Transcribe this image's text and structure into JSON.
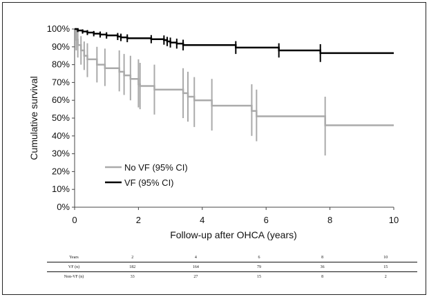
{
  "chart_data": {
    "type": "line",
    "xlabel": "Follow-up after OHCA (years)",
    "ylabel": "Cumulative survival",
    "xlim": [
      0,
      10
    ],
    "ylim": [
      0,
      100
    ],
    "x_ticks": [
      0,
      2,
      4,
      6,
      8,
      10
    ],
    "y_ticks": [
      0,
      10,
      20,
      30,
      40,
      50,
      60,
      70,
      80,
      90,
      100
    ],
    "y_tick_suffix": "%",
    "legend_position": "lower-left",
    "series": [
      {
        "name": "No VF (95% CI)",
        "color": "#aaaaaa",
        "steps": [
          {
            "x": 0,
            "y": 100
          },
          {
            "x": 0.05,
            "y": 94,
            "lo": 88,
            "hi": 100
          },
          {
            "x": 0.1,
            "y": 91,
            "lo": 84,
            "hi": 98
          },
          {
            "x": 0.2,
            "y": 88,
            "lo": 80,
            "hi": 96
          },
          {
            "x": 0.3,
            "y": 85,
            "lo": 77,
            "hi": 93
          },
          {
            "x": 0.4,
            "y": 83,
            "lo": 73,
            "hi": 92
          },
          {
            "x": 0.7,
            "y": 80,
            "lo": 70,
            "hi": 90
          },
          {
            "x": 0.95,
            "y": 78,
            "lo": 68,
            "hi": 89
          },
          {
            "x": 1.4,
            "y": 76,
            "lo": 65,
            "hi": 88
          },
          {
            "x": 1.55,
            "y": 74,
            "lo": 63,
            "hi": 86
          },
          {
            "x": 1.75,
            "y": 72,
            "lo": 60,
            "hi": 85
          },
          {
            "x": 2.0,
            "y": 69,
            "lo": 56,
            "hi": 83
          },
          {
            "x": 2.05,
            "y": 68,
            "lo": 55,
            "hi": 81
          },
          {
            "x": 2.5,
            "y": 66,
            "lo": 52,
            "hi": 80
          },
          {
            "x": 3.4,
            "y": 64,
            "lo": 50,
            "hi": 78
          },
          {
            "x": 3.55,
            "y": 62,
            "lo": 48,
            "hi": 76
          },
          {
            "x": 3.75,
            "y": 60,
            "lo": 45,
            "hi": 73
          },
          {
            "x": 4.3,
            "y": 57,
            "lo": 43,
            "hi": 72
          },
          {
            "x": 5.55,
            "y": 54,
            "lo": 40,
            "hi": 69
          },
          {
            "x": 5.7,
            "y": 51,
            "lo": 37,
            "hi": 66
          },
          {
            "x": 7.85,
            "y": 46,
            "lo": 29,
            "hi": 62
          },
          {
            "x": 10,
            "y": 46
          }
        ]
      },
      {
        "name": "VF (95% CI)",
        "color": "#000000",
        "steps": [
          {
            "x": 0,
            "y": 100
          },
          {
            "x": 0.1,
            "y": 99.2,
            "lo": 98.2,
            "hi": 100
          },
          {
            "x": 0.25,
            "y": 98.6,
            "lo": 97.4,
            "hi": 99.8
          },
          {
            "x": 0.4,
            "y": 98,
            "lo": 96.6,
            "hi": 99.4
          },
          {
            "x": 0.6,
            "y": 97.4,
            "lo": 95.9,
            "hi": 98.9
          },
          {
            "x": 0.8,
            "y": 96.9,
            "lo": 95.2,
            "hi": 98.6
          },
          {
            "x": 1.0,
            "y": 96.4,
            "lo": 94.6,
            "hi": 98.2
          },
          {
            "x": 1.35,
            "y": 95.8,
            "lo": 93.8,
            "hi": 97.8
          },
          {
            "x": 1.45,
            "y": 95.3,
            "lo": 93.2,
            "hi": 97.4
          },
          {
            "x": 1.65,
            "y": 94.8,
            "lo": 92.6,
            "hi": 97.0
          },
          {
            "x": 2.4,
            "y": 94.3,
            "lo": 92.0,
            "hi": 96.6
          },
          {
            "x": 2.8,
            "y": 93.8,
            "lo": 91.2,
            "hi": 96.4
          },
          {
            "x": 2.9,
            "y": 93.0,
            "lo": 90.4,
            "hi": 95.6
          },
          {
            "x": 3.0,
            "y": 92.4,
            "lo": 89.6,
            "hi": 95.2
          },
          {
            "x": 3.2,
            "y": 91.8,
            "lo": 89.0,
            "hi": 94.6
          },
          {
            "x": 3.4,
            "y": 91.0,
            "lo": 88.0,
            "hi": 94.0
          },
          {
            "x": 5.05,
            "y": 89.6,
            "lo": 86.0,
            "hi": 93.2
          },
          {
            "x": 6.4,
            "y": 88.0,
            "lo": 84.0,
            "hi": 92.0
          },
          {
            "x": 7.7,
            "y": 86.5,
            "lo": 81.5,
            "hi": 91.5
          },
          {
            "x": 10,
            "y": 86.5
          }
        ]
      }
    ]
  },
  "risk_table": {
    "header_label": "Years",
    "years": [
      "2",
      "4",
      "6",
      "8",
      "10"
    ],
    "rows": [
      {
        "label": "VF (n)",
        "values": [
          "182",
          "164",
          "79",
          "36",
          "15"
        ]
      },
      {
        "label": "Non-VF (n)",
        "values": [
          "33",
          "27",
          "15",
          "8",
          "2"
        ]
      }
    ]
  }
}
